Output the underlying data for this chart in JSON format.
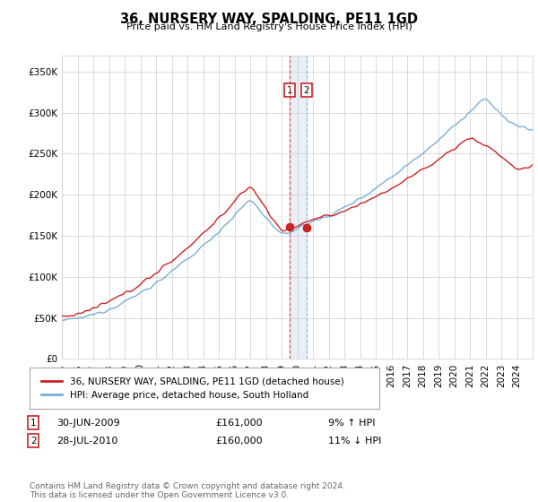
{
  "title": "36, NURSERY WAY, SPALDING, PE11 1GD",
  "subtitle": "Price paid vs. HM Land Registry's House Price Index (HPI)",
  "ylim": [
    0,
    370000
  ],
  "yticks": [
    0,
    50000,
    100000,
    150000,
    200000,
    250000,
    300000,
    350000
  ],
  "hpi_color": "#7aaed6",
  "price_color": "#cc2222",
  "ax1_x": 2009.5,
  "ax2_x": 2010.58,
  "annotation1_date": "30-JUN-2009",
  "annotation1_price": "£161,000",
  "annotation1_hpi": "9% ↑ HPI",
  "annotation1_val": 161000,
  "annotation2_date": "28-JUL-2010",
  "annotation2_price": "£160,000",
  "annotation2_hpi": "11% ↓ HPI",
  "annotation2_val": 160000,
  "legend_label1": "36, NURSERY WAY, SPALDING, PE11 1GD (detached house)",
  "legend_label2": "HPI: Average price, detached house, South Holland",
  "footer": "Contains HM Land Registry data © Crown copyright and database right 2024.\nThis data is licensed under the Open Government Licence v3.0.",
  "bg_color": "#ffffff",
  "grid_color": "#cccccc",
  "xlim_start": 1995,
  "xlim_end": 2025
}
